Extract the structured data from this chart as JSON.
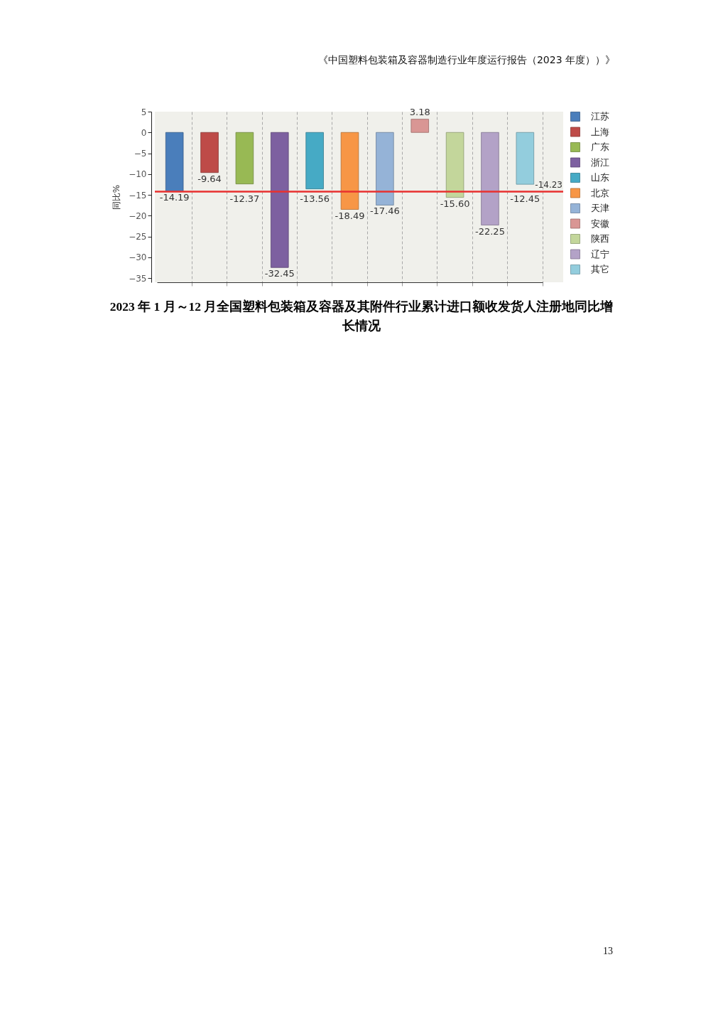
{
  "chart_data": {
    "type": "bar",
    "title": "2023 年 1 月～12 月全国塑料包装箱及容器及其附件行业累计进口额收发货人注册地同比增长情况",
    "ylabel": "同比%",
    "annotations": [
      "《中国塑料包装箱及容器制造行业年度运行报告（2023 年度））》",
      "13"
    ],
    "categories": [
      null,
      null,
      null,
      null,
      null,
      null,
      null,
      null,
      null,
      null,
      null
    ],
    "series": [
      {
        "name": "江苏",
        "color": "#4a7ebb",
        "values": [
          -14.19,
          null,
          null,
          null,
          null,
          null,
          null,
          null,
          null,
          null,
          null
        ],
        "value_labels": [
          "-14.19",
          null,
          null,
          null,
          null,
          null,
          null,
          null,
          null,
          null,
          null
        ]
      },
      {
        "name": "上海",
        "color": "#be4b48",
        "values": [
          null,
          -9.64,
          null,
          null,
          null,
          null,
          null,
          null,
          null,
          null,
          null
        ],
        "value_labels": [
          null,
          "-9.64",
          null,
          null,
          null,
          null,
          null,
          null,
          null,
          null,
          null
        ]
      },
      {
        "name": "广东",
        "color": "#98b954",
        "values": [
          null,
          null,
          -12.37,
          null,
          null,
          null,
          null,
          null,
          null,
          null,
          null
        ],
        "value_labels": [
          null,
          null,
          "-12.37",
          null,
          null,
          null,
          null,
          null,
          null,
          null,
          null
        ]
      },
      {
        "name": "浙江",
        "color": "#7d60a0",
        "values": [
          null,
          null,
          null,
          -32.45,
          null,
          null,
          null,
          null,
          null,
          null,
          null
        ],
        "value_labels": [
          null,
          null,
          null,
          "-32.45",
          null,
          null,
          null,
          null,
          null,
          null,
          null
        ]
      },
      {
        "name": "山东",
        "color": "#46aac5",
        "values": [
          null,
          null,
          null,
          null,
          -13.56,
          null,
          null,
          null,
          null,
          null,
          null
        ],
        "value_labels": [
          null,
          null,
          null,
          null,
          "-13.56",
          null,
          null,
          null,
          null,
          null,
          null
        ]
      },
      {
        "name": "北京",
        "color": "#f79646",
        "values": [
          null,
          null,
          null,
          null,
          null,
          -18.49,
          null,
          null,
          null,
          null,
          null
        ],
        "value_labels": [
          null,
          null,
          null,
          null,
          null,
          "-18.49",
          null,
          null,
          null,
          null,
          null
        ]
      },
      {
        "name": "天津",
        "color": "#95b3d7",
        "values": [
          null,
          null,
          null,
          null,
          null,
          null,
          -17.46,
          null,
          null,
          null,
          null
        ],
        "value_labels": [
          null,
          null,
          null,
          null,
          null,
          null,
          "-17.46",
          null,
          null,
          null,
          null
        ]
      },
      {
        "name": "安徽",
        "color": "#d99694",
        "values": [
          null,
          null,
          null,
          null,
          null,
          null,
          null,
          3.18,
          null,
          null,
          null
        ],
        "value_labels": [
          null,
          null,
          null,
          null,
          null,
          null,
          null,
          "3.18",
          null,
          null,
          null
        ]
      },
      {
        "name": "陕西",
        "color": "#c3d69b",
        "values": [
          null,
          null,
          null,
          null,
          null,
          null,
          null,
          null,
          -15.6,
          null,
          null
        ],
        "value_labels": [
          null,
          null,
          null,
          null,
          null,
          null,
          null,
          null,
          "-15.60",
          null,
          null
        ]
      },
      {
        "name": "辽宁",
        "color": "#b3a2c7",
        "values": [
          null,
          null,
          null,
          null,
          null,
          null,
          null,
          null,
          null,
          -22.25,
          null
        ],
        "value_labels": [
          null,
          null,
          null,
          null,
          null,
          null,
          null,
          null,
          null,
          "-22.25",
          null
        ]
      },
      {
        "name": "其它",
        "color": "#93cddd",
        "values": [
          null,
          null,
          null,
          null,
          null,
          null,
          null,
          null,
          null,
          null,
          -12.45
        ],
        "value_labels": [
          null,
          null,
          null,
          null,
          null,
          null,
          null,
          null,
          null,
          null,
          "-12.45"
        ]
      }
    ],
    "ylim": [
      -36,
      5
    ],
    "yticks": [
      -35,
      -30,
      -25,
      -20,
      -15,
      -10,
      -5,
      0,
      5
    ],
    "ref_lines": [
      {
        "axis": "y",
        "value": -14.23,
        "label": "-14.23",
        "color": "#e8312f"
      }
    ],
    "grid": "x",
    "legend": "right",
    "tick_labels": "y"
  }
}
